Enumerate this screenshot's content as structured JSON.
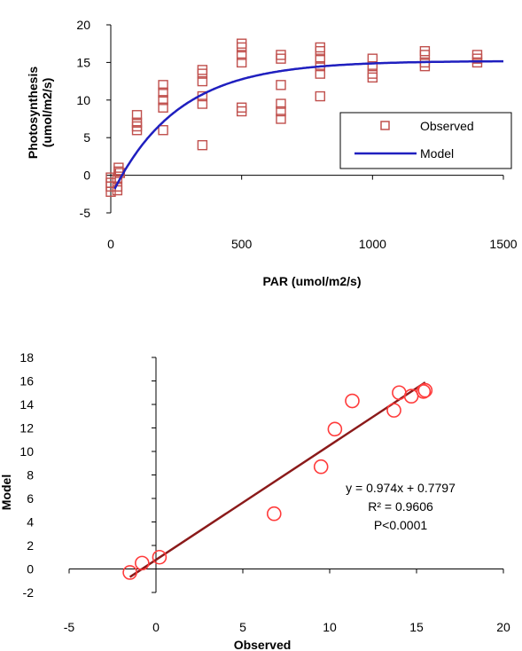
{
  "chart_data": [
    {
      "type": "scatter",
      "title": "",
      "xlabel": "PAR (umol/m2/s)",
      "ylabel": "Photosynthesis (umol/m2/s)",
      "ylabel_line1": "Photosynthesis",
      "ylabel_line2": "(umol/m2/s)",
      "xlim": [
        0,
        1500
      ],
      "ylim": [
        -5,
        20
      ],
      "xticks": [
        "0",
        "500",
        "1000",
        "1500"
      ],
      "yticks": [
        "-5",
        "0",
        "5",
        "10",
        "15",
        "20"
      ],
      "grid": false,
      "legend_position": "lower-right",
      "series": [
        {
          "name": "Observed",
          "marker": "square",
          "color": "#c0504d",
          "points": [
            [
              0,
              -1.5
            ],
            [
              0,
              -2.2
            ],
            [
              0,
              -1.0
            ],
            [
              0,
              -0.3
            ],
            [
              25,
              -2.0
            ],
            [
              25,
              -1.5
            ],
            [
              25,
              -0.5
            ],
            [
              30,
              0.5
            ],
            [
              30,
              1.0
            ],
            [
              35,
              0.3
            ],
            [
              100,
              6.0
            ],
            [
              100,
              7.0
            ],
            [
              100,
              8.0
            ],
            [
              100,
              6.5
            ],
            [
              200,
              6.0
            ],
            [
              200,
              9.0
            ],
            [
              200,
              10.0
            ],
            [
              200,
              11.0
            ],
            [
              200,
              12.0
            ],
            [
              350,
              4.0
            ],
            [
              350,
              9.5
            ],
            [
              350,
              10.5
            ],
            [
              350,
              12.5
            ],
            [
              350,
              13.5
            ],
            [
              350,
              14.0
            ],
            [
              500,
              8.5
            ],
            [
              500,
              9.0
            ],
            [
              500,
              15.0
            ],
            [
              500,
              16.0
            ],
            [
              500,
              17.0
            ],
            [
              500,
              17.5
            ],
            [
              650,
              7.5
            ],
            [
              650,
              8.5
            ],
            [
              650,
              9.5
            ],
            [
              650,
              12.0
            ],
            [
              650,
              15.5
            ],
            [
              650,
              16.0
            ],
            [
              800,
              10.5
            ],
            [
              800,
              13.5
            ],
            [
              800,
              14.5
            ],
            [
              800,
              15.5
            ],
            [
              800,
              16.5
            ],
            [
              800,
              17.0
            ],
            [
              1000,
              13.0
            ],
            [
              1000,
              13.5
            ],
            [
              1000,
              14.5
            ],
            [
              1000,
              15.5
            ],
            [
              1200,
              14.5
            ],
            [
              1200,
              15.0
            ],
            [
              1200,
              16.0
            ],
            [
              1200,
              16.5
            ],
            [
              1400,
              15.0
            ],
            [
              1400,
              15.5
            ],
            [
              1400,
              16.0
            ]
          ]
        },
        {
          "name": "Model",
          "style": "line",
          "color": "#1f1fbf",
          "asymptote": 15.2,
          "rate": 0.004,
          "x_start": 15,
          "x_end": 1500
        }
      ]
    },
    {
      "type": "scatter",
      "title": "",
      "xlabel": "Observed",
      "ylabel": "Model",
      "xlim": [
        -5,
        20
      ],
      "ylim": [
        -2,
        18
      ],
      "xticks": [
        "-5",
        "0",
        "5",
        "10",
        "15",
        "20"
      ],
      "yticks": [
        "-2",
        "0",
        "2",
        "4",
        "6",
        "8",
        "10",
        "12",
        "14",
        "16",
        "18"
      ],
      "grid": false,
      "series": [
        {
          "name": "",
          "marker": "circle-open",
          "color": "#ff3b3b",
          "points": [
            [
              -1.5,
              -0.3
            ],
            [
              -0.8,
              0.5
            ],
            [
              0.2,
              1.0
            ],
            [
              6.8,
              4.7
            ],
            [
              9.5,
              8.7
            ],
            [
              10.3,
              11.9
            ],
            [
              11.3,
              14.3
            ],
            [
              13.7,
              13.5
            ],
            [
              14.0,
              15.0
            ],
            [
              14.7,
              14.7
            ],
            [
              15.4,
              15.1
            ],
            [
              15.5,
              15.2
            ]
          ]
        }
      ],
      "fit_line": {
        "slope": 0.974,
        "intercept": 0.7797,
        "x_range": [
          -1.5,
          15.5
        ],
        "color": "#8b1a1a"
      },
      "annotations": [
        "y = 0.974x + 0.7797",
        "R² = 0.9606",
        "P<0.0001"
      ]
    }
  ]
}
